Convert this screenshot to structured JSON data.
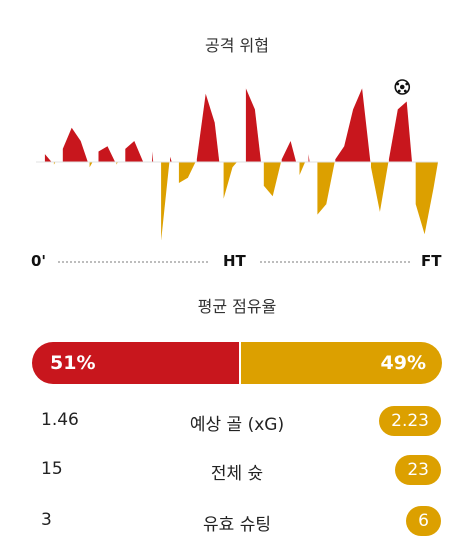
{
  "momentum": {
    "title": "공격 위협",
    "colors": {
      "home": "#c8161d",
      "away": "#dca000"
    },
    "goal_icon": "soccer-ball-icon",
    "timeline": {
      "start": "0'",
      "half": "HT",
      "end": "FT"
    },
    "chart_data": {
      "type": "area",
      "x": [
        0,
        2,
        4,
        6,
        8,
        10,
        12,
        14,
        16,
        18,
        20,
        22,
        24,
        26,
        28,
        30,
        32,
        34,
        36,
        38,
        40,
        42,
        44,
        45,
        47,
        49,
        51,
        53,
        55,
        57,
        59,
        61,
        63,
        65,
        67,
        69,
        71,
        73,
        75,
        77,
        79,
        81,
        83,
        85,
        87,
        89,
        90
      ],
      "values": [
        0,
        6,
        -2,
        10,
        26,
        16,
        -4,
        8,
        12,
        -2,
        10,
        16,
        0,
        8,
        -60,
        4,
        -16,
        -12,
        2,
        52,
        30,
        -28,
        -4,
        0,
        56,
        40,
        -18,
        -26,
        2,
        16,
        -10,
        6,
        -40,
        -32,
        2,
        12,
        40,
        56,
        -4,
        -38,
        2,
        40,
        46,
        -32,
        -55,
        -20,
        0
      ],
      "goals": [
        {
          "x": 82,
          "team": "home"
        }
      ],
      "ylim": [
        -70,
        70
      ]
    }
  },
  "possession": {
    "title": "평균 점유율",
    "home_pct": 51,
    "away_pct": 49,
    "home_label": "51%",
    "away_label": "49%"
  },
  "stats": [
    {
      "label": "예상 골 (xG)",
      "home": "1.46",
      "away": "2.23"
    },
    {
      "label": "전체 슛",
      "home": "15",
      "away": "23"
    },
    {
      "label": "유효 슈팅",
      "home": "3",
      "away": "6"
    }
  ]
}
